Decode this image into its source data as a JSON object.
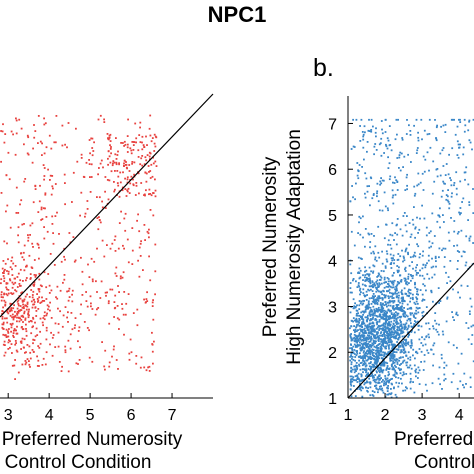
{
  "figure_title": "NPC1",
  "colors": {
    "panel_a_points": "#e8423f",
    "panel_b_points": "#3a87c8",
    "axis": "#000000"
  },
  "chart_data": [
    {
      "panel": "a",
      "type": "scatter",
      "title": "",
      "xlabel": [
        "Preferred Numerosity",
        "Control Condition"
      ],
      "ylabel": "",
      "xticks": [
        "3",
        "4",
        "5",
        "6",
        "7"
      ],
      "yticks": [],
      "xlim": [
        2.8,
        8
      ],
      "ylim": [
        1,
        7.6
      ],
      "reference_line": "y = x",
      "points": {
        "count": 1100,
        "cluster_center": [
          3.0,
          3.0
        ],
        "color": "#e8423f"
      },
      "grid": false,
      "legend": "none"
    },
    {
      "panel": "b",
      "panel_label": "b.",
      "type": "scatter",
      "title": "",
      "xlabel": [
        "Preferred",
        "Control"
      ],
      "ylabel": [
        "Preferred Numerosity",
        "High Numerosity Adaptation"
      ],
      "xticks": [
        "1",
        "2",
        "3",
        "4"
      ],
      "yticks": [
        "1",
        "2",
        "3",
        "4",
        "5",
        "6",
        "7"
      ],
      "xlim": [
        1,
        4.4
      ],
      "ylim": [
        1,
        7.6
      ],
      "reference_line": "y = x",
      "points": {
        "count": 2600,
        "cluster_center": [
          1.8,
          2.4
        ],
        "color": "#3a87c8"
      },
      "grid": false,
      "legend": "none"
    }
  ]
}
